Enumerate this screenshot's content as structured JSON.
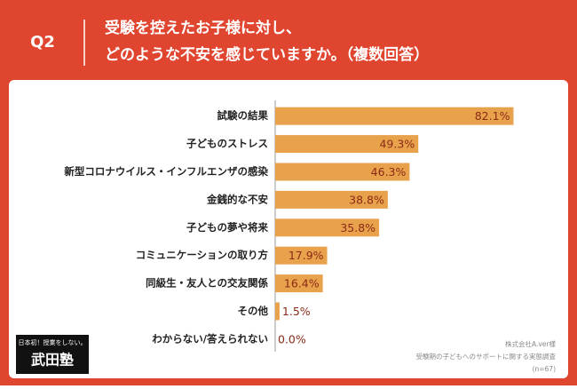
{
  "header": {
    "label": "Q2",
    "title_lines": [
      "受験を控えたお子様に対し、",
      "どのような不安を感じていますか。（複数回答）"
    ]
  },
  "chart_data": {
    "type": "bar",
    "orientation": "horizontal",
    "categories": [
      "試験の結果",
      "子どものストレス",
      "新型コロナウイルス・インフルエンザの感染",
      "金銭的な不安",
      "子どもの夢や将来",
      "コミュニケーションの取り方",
      "同級生・友人との交友関係",
      "その他",
      "わからない/答えられない"
    ],
    "values": [
      82.1,
      49.3,
      46.3,
      38.8,
      35.8,
      17.9,
      16.4,
      1.5,
      0.0
    ],
    "value_labels": [
      "82.1%",
      "49.3%",
      "46.3%",
      "38.8%",
      "35.8%",
      "17.9%",
      "16.4%",
      "1.5%",
      "0.0%"
    ],
    "color": "#e9a24c",
    "xlim": [
      0,
      100
    ]
  },
  "footnote": [
    "株式会社A.ver様",
    "受験期の子どもへのサポートに関する実態調査",
    "(n=67)"
  ],
  "logo": {
    "tagline": "日本初！授業をしない。",
    "name": "武田塾"
  }
}
